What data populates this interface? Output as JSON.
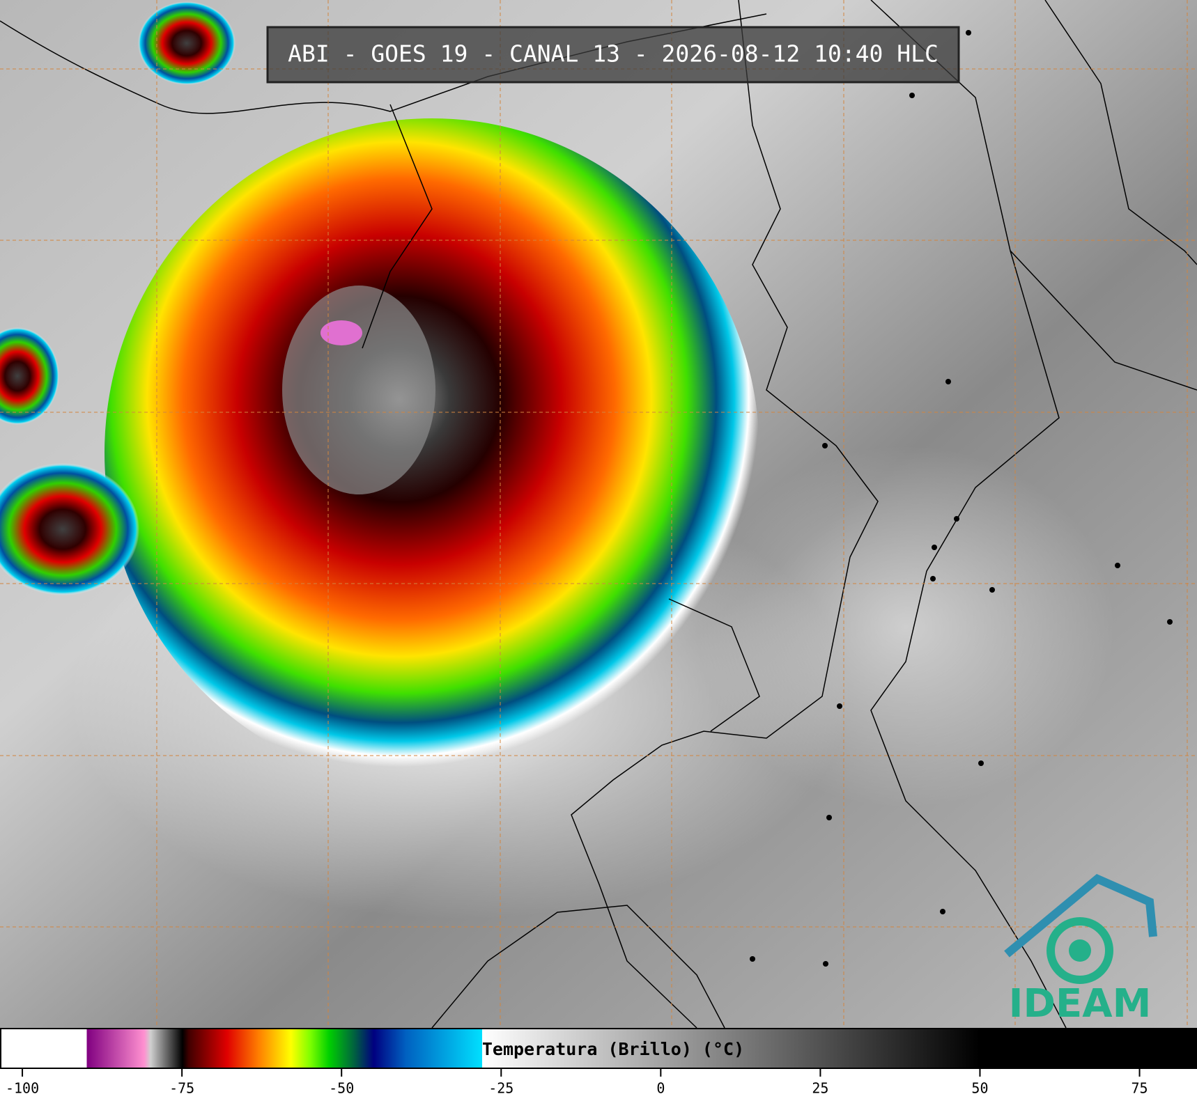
{
  "title": "ABI - GOES 19 - CANAL 13 - 2026-08-12 10:40 HLC",
  "logo": "IDEAM",
  "colorbar": {
    "label": "Temperatura (Brillo) (°C)",
    "xlim": [
      -103.5,
      84
    ],
    "xticks": [
      -100,
      -75,
      -50,
      -25,
      0,
      25,
      50,
      75
    ],
    "stops": [
      {
        "value": -103.5,
        "color": "#ffffff"
      },
      {
        "value": -90,
        "color": "#ffffff"
      },
      {
        "value": -90,
        "color": "#800080"
      },
      {
        "value": -81,
        "color": "#ff90d0"
      },
      {
        "value": -80,
        "color": "#d0d0d0"
      },
      {
        "value": -75,
        "color": "#000000"
      },
      {
        "value": -74,
        "color": "#400000"
      },
      {
        "value": -68,
        "color": "#e00000"
      },
      {
        "value": -63,
        "color": "#ff8000"
      },
      {
        "value": -58,
        "color": "#ffff00"
      },
      {
        "value": -55,
        "color": "#80ff00"
      },
      {
        "value": -52,
        "color": "#00d000"
      },
      {
        "value": -48,
        "color": "#006040"
      },
      {
        "value": -45,
        "color": "#000080"
      },
      {
        "value": -40,
        "color": "#0060c0"
      },
      {
        "value": -28,
        "color": "#00e0ff"
      },
      {
        "value": -28,
        "color": "#ffffff"
      },
      {
        "value": 50,
        "color": "#000000"
      },
      {
        "value": 84,
        "color": "#000000"
      }
    ]
  }
}
